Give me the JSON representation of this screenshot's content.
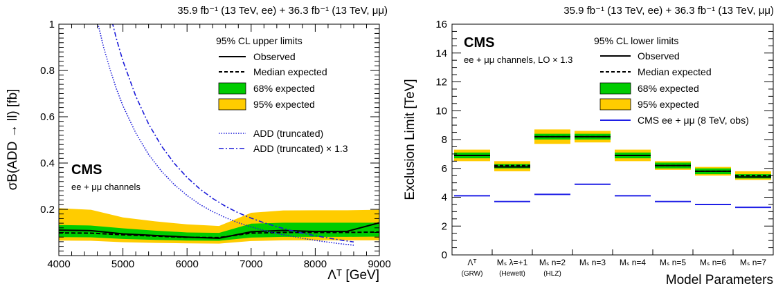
{
  "chart_data": [
    {
      "type": "line",
      "header": "35.9 fb⁻¹ (13 TeV, ee) + 36.3 fb⁻¹ (13 TeV, μμ)",
      "experiment": "CMS",
      "subtitle": "ee + μμ channels",
      "xlabel": "Λᵀ [GeV]",
      "ylabel": "σB(ADD → ll) [fb]",
      "xlim": [
        4000,
        9000
      ],
      "ylim": [
        0.0,
        1.0
      ],
      "xticks": [
        4000,
        5000,
        6000,
        7000,
        8000,
        9000
      ],
      "yticks": [
        0.2,
        0.4,
        0.6,
        0.8,
        1.0
      ],
      "ytick_labels": [
        "0.2",
        "0.4",
        "0.6",
        "0.8",
        "1"
      ],
      "legend_title": "95% CL upper limits",
      "legend_position": "top-right",
      "x": [
        4000,
        4500,
        5000,
        5500,
        6000,
        6500,
        7000,
        7500,
        8000,
        8500,
        9000
      ],
      "observed": [
        0.11,
        0.108,
        0.094,
        0.087,
        0.08,
        0.075,
        0.103,
        0.109,
        0.104,
        0.105,
        0.142
      ],
      "expected": [
        0.098,
        0.097,
        0.09,
        0.084,
        0.079,
        0.078,
        0.097,
        0.1,
        0.1,
        0.1,
        0.102
      ],
      "band68_low": [
        0.08,
        0.079,
        0.072,
        0.068,
        0.065,
        0.064,
        0.078,
        0.081,
        0.081,
        0.081,
        0.082
      ],
      "band68_high": [
        0.132,
        0.13,
        0.118,
        0.108,
        0.1,
        0.098,
        0.138,
        0.142,
        0.142,
        0.142,
        0.142
      ],
      "band95_low": [
        0.065,
        0.064,
        0.058,
        0.055,
        0.053,
        0.052,
        0.063,
        0.066,
        0.066,
        0.066,
        0.066
      ],
      "band95_high": [
        0.205,
        0.198,
        0.165,
        0.148,
        0.135,
        0.128,
        0.185,
        0.195,
        0.196,
        0.196,
        0.198
      ],
      "add_lambda": [
        4600,
        4700,
        4800,
        4900,
        5000,
        5200,
        5400,
        5600,
        5800,
        6000,
        6200,
        6400,
        6600,
        6800,
        7000,
        7200,
        7400,
        7600,
        7800,
        8000,
        8200,
        8400,
        8600
      ],
      "add_truncated": [
        1.013,
        0.899,
        0.803,
        0.719,
        0.647,
        0.53,
        0.437,
        0.365,
        0.307,
        0.26,
        0.221,
        0.19,
        0.164,
        0.142,
        0.124,
        0.109,
        0.096,
        0.085,
        0.075,
        0.066,
        0.058,
        0.051,
        0.045
      ],
      "add_truncated_x13": [
        1.316,
        1.169,
        1.044,
        0.935,
        0.841,
        0.689,
        0.569,
        0.474,
        0.399,
        0.338,
        0.288,
        0.247,
        0.213,
        0.185,
        0.162,
        0.142,
        0.125,
        0.11,
        0.097,
        0.086,
        0.076,
        0.067,
        0.059
      ],
      "legend": [
        {
          "label": "Observed",
          "style": "solid"
        },
        {
          "label": "Median expected",
          "style": "dashed"
        },
        {
          "label": "68% expected",
          "style": "band68"
        },
        {
          "label": "95% expected",
          "style": "band95"
        },
        {
          "label": "ADD (truncated)",
          "style": "dotted-blue"
        },
        {
          "label": "ADD (truncated) × 1.3",
          "style": "dashdot-blue"
        }
      ]
    },
    {
      "type": "bar",
      "header": "35.9 fb⁻¹ (13 TeV, ee) + 36.3 fb⁻¹ (13 TeV, μμ)",
      "experiment": "CMS",
      "subtitle": "ee + μμ channels, LO × 1.3",
      "xlabel": "Model Parameters",
      "ylabel": "Exclusion Limit [TeV]",
      "ylim": [
        0,
        16
      ],
      "yticks": [
        0,
        2,
        4,
        6,
        8,
        10,
        12,
        14,
        16
      ],
      "legend_title": "95% CL lower limits",
      "legend_position": "top-right",
      "categories": [
        {
          "main": "Λᵀ",
          "sub": "(GRW)"
        },
        {
          "main": "Mₛ λ=+1",
          "sub": "(Hewett)"
        },
        {
          "main": "Mₛ n=2",
          "sub": "(HLZ)"
        },
        {
          "main": "Mₛ n=3",
          "sub": ""
        },
        {
          "main": "Mₛ n=4",
          "sub": ""
        },
        {
          "main": "Mₛ n=5",
          "sub": ""
        },
        {
          "main": "Mₛ n=6",
          "sub": ""
        },
        {
          "main": "Mₛ n=7",
          "sub": ""
        }
      ],
      "observed": [
        6.9,
        6.1,
        8.2,
        8.2,
        6.9,
        6.2,
        5.8,
        5.4
      ],
      "expected": [
        6.9,
        6.2,
        8.2,
        8.2,
        6.9,
        6.2,
        5.8,
        5.5
      ],
      "band68_low": [
        6.7,
        6.0,
        8.0,
        8.0,
        6.7,
        6.0,
        5.6,
        5.3
      ],
      "band68_high": [
        7.1,
        6.3,
        8.4,
        8.4,
        7.1,
        6.4,
        6.0,
        5.6
      ],
      "band95_low": [
        6.5,
        5.8,
        7.7,
        7.8,
        6.5,
        5.9,
        5.5,
        5.2
      ],
      "band95_high": [
        7.3,
        6.5,
        8.7,
        8.6,
        7.3,
        6.5,
        6.1,
        5.8
      ],
      "cms_8tev_obs": [
        4.1,
        3.7,
        4.2,
        4.9,
        4.1,
        3.7,
        3.5,
        3.3
      ],
      "legend": [
        {
          "label": "Observed",
          "style": "solid"
        },
        {
          "label": "Median expected",
          "style": "dashed"
        },
        {
          "label": "68% expected",
          "style": "band68"
        },
        {
          "label": "95% expected",
          "style": "band95"
        },
        {
          "label": "CMS ee + μμ (8 TeV, obs)",
          "style": "solid-blue"
        }
      ]
    }
  ],
  "colors": {
    "band68": "#00cc00",
    "band95": "#ffcc00",
    "add_lines": "#1a1ad9",
    "cms8_line": "#1f1fe6",
    "axis": "#000000"
  }
}
